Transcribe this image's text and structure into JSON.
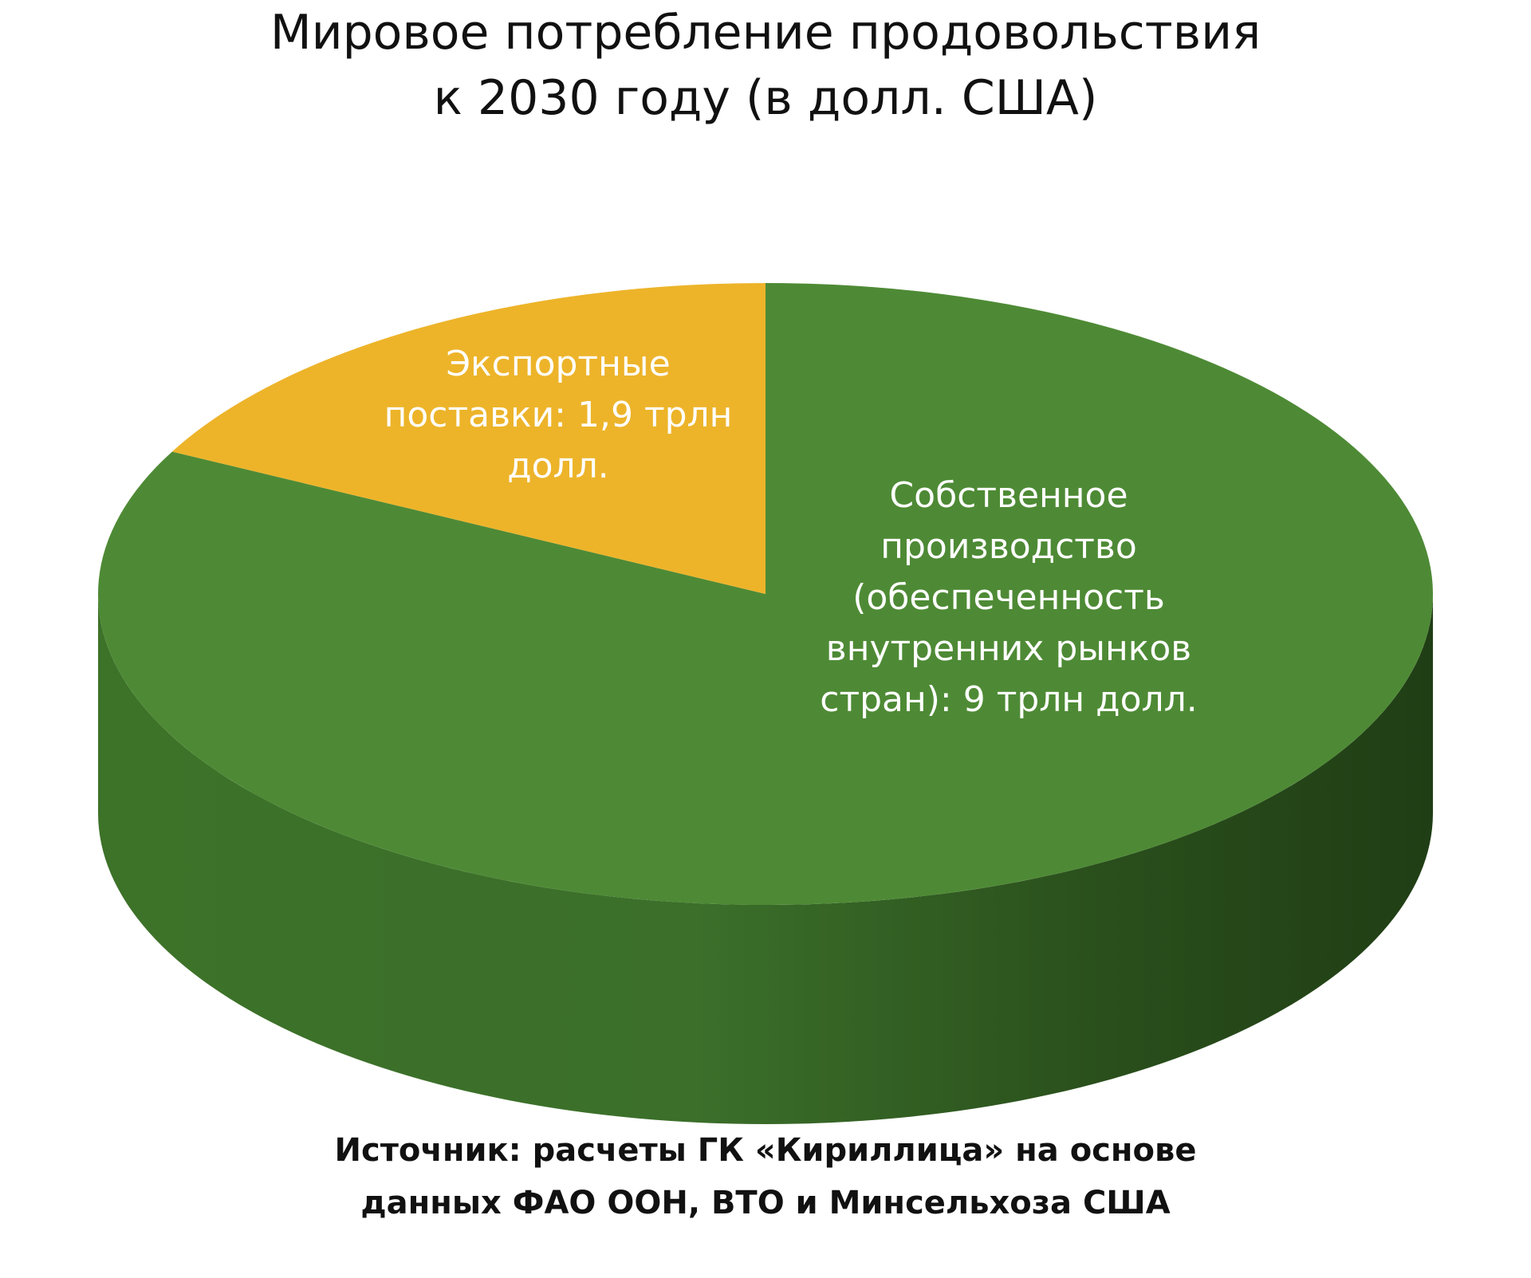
{
  "chart_data": {
    "type": "pie",
    "title_lines": [
      "Мировое потребление продовольствия",
      "к 2030 году (в долл. США)"
    ],
    "slices": [
      {
        "name": "Экспортные поставки",
        "value": 1.9,
        "label_lines": [
          "Экспортные",
          "поставки: 1,9 трлн",
          "долл."
        ],
        "color": "#EDB42A"
      },
      {
        "name": "Собственное производство",
        "value": 9,
        "label_lines": [
          "Собственное",
          "производство",
          "(обеспеченность",
          "внутренних рынков",
          "стран): 9 трлн долл."
        ],
        "color": "#4E8A35"
      }
    ],
    "style": "3d",
    "side_color": "#2E5A1F",
    "source_lines": [
      "Источник: расчеты ГК «Кириллица» на основе",
      "данных ФАО ООН, ВТО и Минсельхоза США"
    ]
  }
}
